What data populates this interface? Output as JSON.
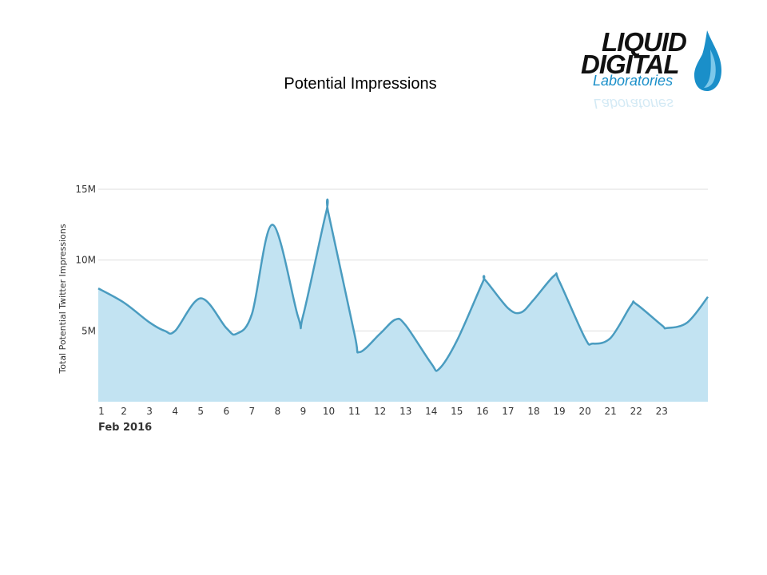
{
  "slide": {
    "title": "Potential Impressions"
  },
  "logo": {
    "line1": "LIQUID",
    "line2": "DIGITAL",
    "line3": "Laboratories",
    "accent_color": "#1a8fc9",
    "icon": "water-drop-icon"
  },
  "chart_data": {
    "type": "area",
    "title": "",
    "xlabel": "",
    "ylabel": "Total Potential Twitter Impressions",
    "x_period_label": "Feb 2016",
    "x_tick_labels": [
      "1",
      "2",
      "3",
      "4",
      "5",
      "6",
      "7",
      "8",
      "9",
      "10",
      "11",
      "12",
      "13",
      "14",
      "15",
      "16",
      "17",
      "18",
      "19",
      "20",
      "21",
      "22",
      "23"
    ],
    "y_tick_labels": [
      "5M",
      "10M",
      "15M"
    ],
    "y_tick_values": [
      5000000,
      10000000,
      15000000
    ],
    "ylim": [
      0,
      15000000
    ],
    "xlim": [
      1,
      24.8
    ],
    "grid": true,
    "legend": "none",
    "colors": {
      "line": "#4a9cc0",
      "fill": "#c2e3f2",
      "grid": "#dddddd"
    },
    "series": [
      {
        "x": [
          1,
          2,
          3,
          3.6,
          4,
          5,
          6,
          6.4,
          7,
          7.8,
          8.8,
          9,
          9.9,
          10,
          11,
          11.2,
          12,
          12.6,
          13,
          14,
          14.3,
          15,
          16,
          16.1,
          17,
          17.5,
          18,
          18.8,
          19,
          20,
          20.3,
          21,
          21.8,
          22,
          23,
          23.2,
          24,
          24.8
        ],
        "values": [
          8000000,
          7000000,
          5600000,
          5000000,
          5000000,
          7300000,
          5200000,
          4800000,
          6200000,
          12500000,
          6000000,
          6100000,
          13400000,
          13200000,
          4800000,
          3500000,
          4800000,
          5800000,
          5400000,
          2700000,
          2300000,
          4300000,
          8400000,
          8600000,
          6600000,
          6300000,
          7200000,
          8900000,
          8500000,
          4500000,
          4100000,
          4500000,
          6800000,
          6900000,
          5400000,
          5200000,
          5600000,
          7400000
        ]
      }
    ]
  }
}
